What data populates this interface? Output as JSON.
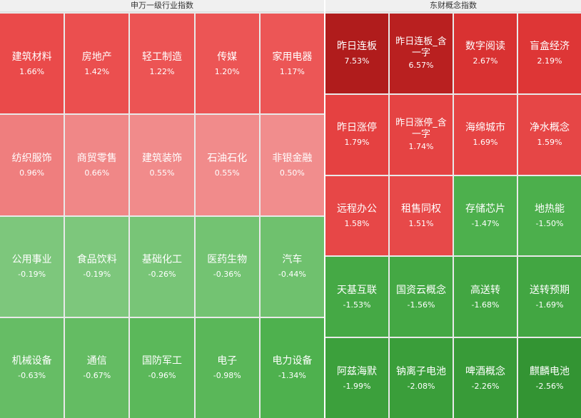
{
  "left": {
    "title": "申万一级行业指数",
    "cells": [
      {
        "name": "建筑材料",
        "pct": "1.66%",
        "color": "#ea4a4a"
      },
      {
        "name": "房地产",
        "pct": "1.42%",
        "color": "#eb4f4f"
      },
      {
        "name": "轻工制造",
        "pct": "1.22%",
        "color": "#ec5454"
      },
      {
        "name": "传媒",
        "pct": "1.20%",
        "color": "#ec5555"
      },
      {
        "name": "家用电器",
        "pct": "1.17%",
        "color": "#ec5656"
      },
      {
        "name": "纺织服饰",
        "pct": "0.96%",
        "color": "#ef7e7e"
      },
      {
        "name": "商贸零售",
        "pct": "0.66%",
        "color": "#f08787"
      },
      {
        "name": "建筑装饰",
        "pct": "0.55%",
        "color": "#f18b8b"
      },
      {
        "name": "石油石化",
        "pct": "0.55%",
        "color": "#f18b8b"
      },
      {
        "name": "非银金融",
        "pct": "0.50%",
        "color": "#f18d8d"
      },
      {
        "name": "公用事业",
        "pct": "-0.19%",
        "color": "#7dc77c"
      },
      {
        "name": "食品饮料",
        "pct": "-0.19%",
        "color": "#7dc77c"
      },
      {
        "name": "基础化工",
        "pct": "-0.26%",
        "color": "#78c577"
      },
      {
        "name": "医药生物",
        "pct": "-0.36%",
        "color": "#73c372"
      },
      {
        "name": "汽车",
        "pct": "-0.44%",
        "color": "#6fc16e"
      },
      {
        "name": "机械设备",
        "pct": "-0.63%",
        "color": "#66bd65"
      },
      {
        "name": "通信",
        "pct": "-0.67%",
        "color": "#64bc63"
      },
      {
        "name": "国防军工",
        "pct": "-0.96%",
        "color": "#5bb85a"
      },
      {
        "name": "电子",
        "pct": "-0.98%",
        "color": "#5ab759"
      },
      {
        "name": "电力设备",
        "pct": "-1.34%",
        "color": "#4eb14e"
      }
    ]
  },
  "right": {
    "title": "东财概念指数",
    "cells": [
      {
        "name": "昨日连板",
        "pct": "7.53%",
        "color": "#b01c1c"
      },
      {
        "name": "昨日连板_含一字",
        "pct": "6.57%",
        "color": "#b92020"
      },
      {
        "name": "数字阅读",
        "pct": "2.67%",
        "color": "#d93232"
      },
      {
        "name": "盲盒经济",
        "pct": "2.19%",
        "color": "#de3636"
      },
      {
        "name": "昨日涨停",
        "pct": "1.79%",
        "color": "#e54141"
      },
      {
        "name": "昨日涨停_含一字",
        "pct": "1.74%",
        "color": "#e54343"
      },
      {
        "name": "海绵城市",
        "pct": "1.69%",
        "color": "#e64444"
      },
      {
        "name": "净水概念",
        "pct": "1.59%",
        "color": "#e64646"
      },
      {
        "name": "远程办公",
        "pct": "1.58%",
        "color": "#e74747"
      },
      {
        "name": "租售同权",
        "pct": "1.51%",
        "color": "#e74949"
      },
      {
        "name": "存储芯片",
        "pct": "-1.47%",
        "color": "#4db04d"
      },
      {
        "name": "地热能",
        "pct": "-1.50%",
        "color": "#4caf4c"
      },
      {
        "name": "天基互联",
        "pct": "-1.53%",
        "color": "#45a945"
      },
      {
        "name": "国资云概念",
        "pct": "-1.56%",
        "color": "#44a844"
      },
      {
        "name": "高送转",
        "pct": "-1.68%",
        "color": "#42a642"
      },
      {
        "name": "送转预期",
        "pct": "-1.69%",
        "color": "#42a642"
      },
      {
        "name": "阿兹海默",
        "pct": "-1.99%",
        "color": "#3ca03c"
      },
      {
        "name": "钠离子电池",
        "pct": "-2.08%",
        "color": "#3a9e3a"
      },
      {
        "name": "啤酒概念",
        "pct": "-2.26%",
        "color": "#389b38"
      },
      {
        "name": "麒麟电池",
        "pct": "-2.56%",
        "color": "#339433"
      }
    ]
  }
}
